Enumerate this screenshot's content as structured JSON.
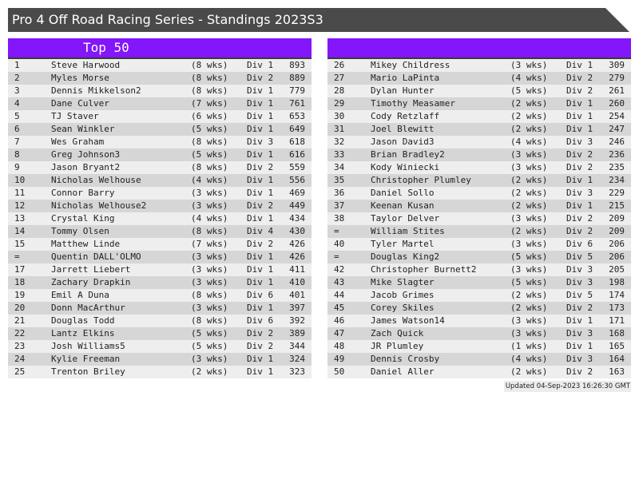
{
  "title": "Pro 4 Off Road Racing Series - Standings 2023S3",
  "left_header": "Top 50",
  "right_header": "",
  "colors": {
    "header": "#8316fa",
    "title_bar": "#4a4a4a",
    "row_light": "#eeeeee",
    "row_dark": "#d6d6d6"
  },
  "left_rows": [
    [
      "1",
      "Steve Harwood",
      "(8 wks)",
      "Div 1",
      "893"
    ],
    [
      "2",
      "Myles Morse",
      "(8 wks)",
      "Div 2",
      "889"
    ],
    [
      "3",
      "Dennis Mikkelson2",
      "(8 wks)",
      "Div 1",
      "779"
    ],
    [
      "4",
      "Dane Culver",
      "(7 wks)",
      "Div 1",
      "761"
    ],
    [
      "5",
      "TJ Staver",
      "(6 wks)",
      "Div 1",
      "653"
    ],
    [
      "6",
      "Sean Winkler",
      "(5 wks)",
      "Div 1",
      "649"
    ],
    [
      "7",
      "Wes Graham",
      "(8 wks)",
      "Div 3",
      "618"
    ],
    [
      "8",
      "Greg Johnson3",
      "(5 wks)",
      "Div 1",
      "616"
    ],
    [
      "9",
      "Jason Bryant2",
      "(8 wks)",
      "Div 2",
      "559"
    ],
    [
      "10",
      "Nicholas Welhouse",
      "(4 wks)",
      "Div 1",
      "556"
    ],
    [
      "11",
      "Connor Barry",
      "(3 wks)",
      "Div 1",
      "469"
    ],
    [
      "12",
      "Nicholas Welhouse2",
      "(3 wks)",
      "Div 2",
      "449"
    ],
    [
      "13",
      "Crystal King",
      "(4 wks)",
      "Div 1",
      "434"
    ],
    [
      "14",
      "Tommy Olsen",
      "(8 wks)",
      "Div 4",
      "430"
    ],
    [
      "15",
      "Matthew Linde",
      "(7 wks)",
      "Div 2",
      "426"
    ],
    [
      "=",
      "Quentin DALL'OLMO",
      "(3 wks)",
      "Div 1",
      "426"
    ],
    [
      "17",
      "Jarrett Liebert",
      "(3 wks)",
      "Div 1",
      "411"
    ],
    [
      "18",
      "Zachary Drapkin",
      "(3 wks)",
      "Div 1",
      "410"
    ],
    [
      "19",
      "Emil A Duna",
      "(8 wks)",
      "Div 6",
      "401"
    ],
    [
      "20",
      "Donn MacArthur",
      "(3 wks)",
      "Div 1",
      "397"
    ],
    [
      "21",
      "Douglas Todd",
      "(8 wks)",
      "Div 6",
      "392"
    ],
    [
      "22",
      "Lantz Elkins",
      "(5 wks)",
      "Div 2",
      "389"
    ],
    [
      "23",
      "Josh Williams5",
      "(5 wks)",
      "Div 2",
      "344"
    ],
    [
      "24",
      "Kylie Freeman",
      "(3 wks)",
      "Div 1",
      "324"
    ],
    [
      "25",
      "Trenton Briley",
      "(2 wks)",
      "Div 1",
      "323"
    ]
  ],
  "right_rows": [
    [
      "26",
      "Mikey Childress",
      "(3 wks)",
      "Div 1",
      "309"
    ],
    [
      "27",
      "Mario LaPinta",
      "(4 wks)",
      "Div 2",
      "279"
    ],
    [
      "28",
      "Dylan Hunter",
      "(5 wks)",
      "Div 2",
      "261"
    ],
    [
      "29",
      "Timothy Measamer",
      "(2 wks)",
      "Div 1",
      "260"
    ],
    [
      "30",
      "Cody Retzlaff",
      "(2 wks)",
      "Div 1",
      "254"
    ],
    [
      "31",
      "Joel Blewitt",
      "(2 wks)",
      "Div 1",
      "247"
    ],
    [
      "32",
      "Jason David3",
      "(4 wks)",
      "Div 3",
      "246"
    ],
    [
      "33",
      "Brian Bradley2",
      "(3 wks)",
      "Div 2",
      "236"
    ],
    [
      "34",
      "Kody Winiecki",
      "(3 wks)",
      "Div 2",
      "235"
    ],
    [
      "35",
      "Christopher Plumley",
      "(2 wks)",
      "Div 1",
      "234"
    ],
    [
      "36",
      "Daniel Sollo",
      "(2 wks)",
      "Div 3",
      "229"
    ],
    [
      "37",
      "Keenan Kusan",
      "(2 wks)",
      "Div 1",
      "215"
    ],
    [
      "38",
      "Taylor Delver",
      "(3 wks)",
      "Div 2",
      "209"
    ],
    [
      "=",
      "William Stites",
      "(2 wks)",
      "Div 2",
      "209"
    ],
    [
      "40",
      "Tyler Martel",
      "(3 wks)",
      "Div 6",
      "206"
    ],
    [
      "=",
      "Douglas King2",
      "(5 wks)",
      "Div 5",
      "206"
    ],
    [
      "42",
      "Christopher Burnett2",
      "(3 wks)",
      "Div 3",
      "205"
    ],
    [
      "43",
      "Mike Slagter",
      "(5 wks)",
      "Div 3",
      "198"
    ],
    [
      "44",
      "Jacob Grimes",
      "(2 wks)",
      "Div 5",
      "174"
    ],
    [
      "45",
      "Corey Skiles",
      "(2 wks)",
      "Div 2",
      "173"
    ],
    [
      "46",
      "James Watson14",
      "(3 wks)",
      "Div 1",
      "171"
    ],
    [
      "47",
      "Zach Quick",
      "(3 wks)",
      "Div 3",
      "168"
    ],
    [
      "48",
      "JR Plumley",
      "(1 wks)",
      "Div 1",
      "165"
    ],
    [
      "49",
      "Dennis Crosby",
      "(4 wks)",
      "Div 3",
      "164"
    ],
    [
      "50",
      "Daniel Aller",
      "(2 wks)",
      "Div 2",
      "163"
    ]
  ],
  "updated": "Updated 04-Sep-2023 16:26:30 GMT"
}
